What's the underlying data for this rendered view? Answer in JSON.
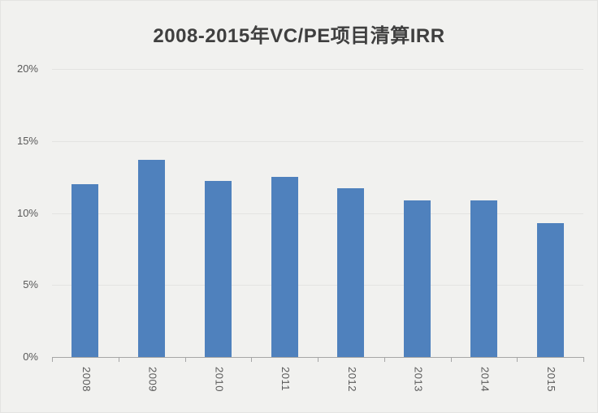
{
  "chart_data": {
    "type": "bar",
    "title": "2008-2015年VC/PE项目清算IRR",
    "categories": [
      "2008",
      "2009",
      "2010",
      "2011",
      "2012",
      "2013",
      "2014",
      "2015"
    ],
    "values": [
      12.0,
      13.7,
      12.2,
      12.5,
      11.7,
      10.9,
      10.9,
      9.3
    ],
    "unit": "%",
    "xlabel": "",
    "ylabel": "",
    "ylim": [
      0,
      20
    ],
    "y_tick_labels": [
      "20%",
      "15%",
      "10%",
      "5%",
      "0%"
    ],
    "grid": true,
    "legend": "none",
    "colors": {
      "bar": "#4f81bd",
      "background": "#f1f1ef",
      "gridline": "#e3e3e1",
      "axis": "#a6a6a6",
      "tick_text": "#595959",
      "title_text": "#3f3f3f"
    }
  }
}
